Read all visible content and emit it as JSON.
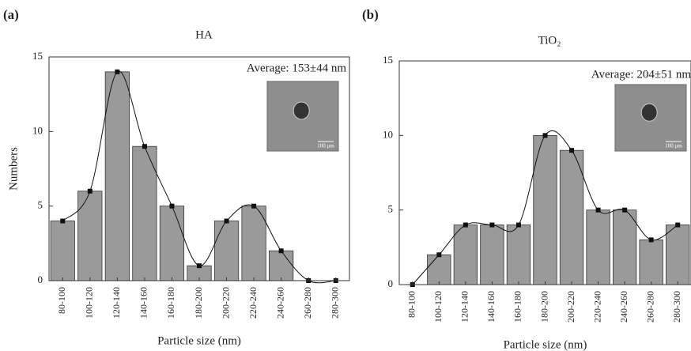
{
  "chart_data": [
    {
      "type": "bar",
      "panel_label": "(a)",
      "title": "HA",
      "annotation": "Average: 153±44 nm",
      "inset_scale": "100 μm",
      "x_label": "Particle size (nm)",
      "y_label": "Numbers",
      "categories": [
        "80-100",
        "100-120",
        "120-140",
        "140-160",
        "160-180",
        "180-200",
        "200-220",
        "220-240",
        "240-260",
        "260-280",
        "280-300"
      ],
      "values": [
        4,
        6,
        14,
        9,
        5,
        1,
        4,
        5,
        2,
        0,
        0
      ],
      "color": "#9a9a9a",
      "ylim": [
        0,
        15
      ],
      "yticks": [
        0,
        5,
        10,
        15
      ]
    },
    {
      "type": "bar",
      "panel_label": "(b)",
      "title": "TiO₂",
      "annotation": "Average: 204±51 nm",
      "inset_scale": "100 μm",
      "x_label": "Particle size (nm)",
      "categories": [
        "80-100",
        "100-120",
        "120-140",
        "140-160",
        "160-180",
        "180-200",
        "200-220",
        "220-240",
        "240-260",
        "260-280",
        "280-300"
      ],
      "values": [
        0,
        2,
        4,
        4,
        4,
        10,
        9,
        5,
        5,
        3,
        4
      ],
      "color": "#9a9a9a",
      "ylim": [
        0,
        15
      ],
      "yticks": [
        0,
        5,
        10,
        15
      ]
    }
  ]
}
